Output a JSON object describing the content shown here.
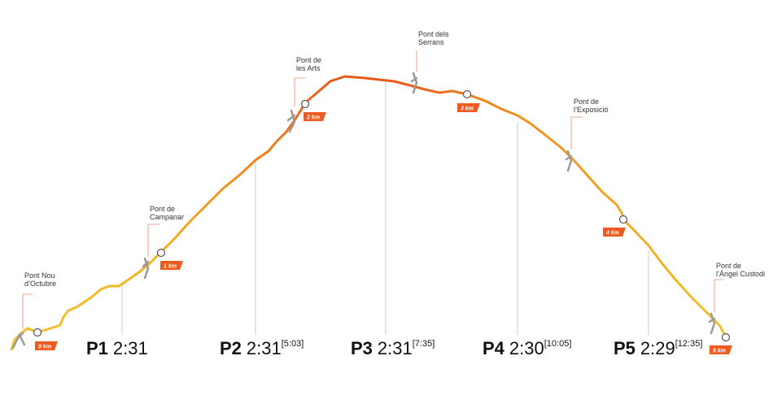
{
  "colors": {
    "yellow": "#f4c22b",
    "orange": "#f08a1c",
    "red_orange": "#e85a1b",
    "km_badge": "#f05a1e",
    "bridge_grey": "#9a9a9a",
    "guide_line": "#cccccc",
    "label_line": "#f08a6a"
  },
  "bridges": [
    {
      "line1": "Pont Nou",
      "line2": "d’Octubre"
    },
    {
      "line1": "Pont de",
      "line2": "Campanar"
    },
    {
      "line1": "Pont de",
      "line2": "les Arts"
    },
    {
      "line1": "Pont dels",
      "line2": "Serrans"
    },
    {
      "line1": "Pont de",
      "line2": "l’Exposició"
    },
    {
      "line1": "Pont de",
      "line2": "l’Àngel Custodi"
    }
  ],
  "km_markers": [
    "0 km",
    "1 km",
    "2 km",
    "3 km",
    "4 km",
    "5 km"
  ],
  "splits": [
    {
      "name": "P1",
      "time": "2:31",
      "cumulative": ""
    },
    {
      "name": "P2",
      "time": "2:31",
      "cumulative": "[5:03]"
    },
    {
      "name": "P3",
      "time": "2:31",
      "cumulative": "[7:35]"
    },
    {
      "name": "P4",
      "time": "2:30",
      "cumulative": "[10:05]"
    },
    {
      "name": "P5",
      "time": "2:29",
      "cumulative": "[12:35]"
    }
  ]
}
